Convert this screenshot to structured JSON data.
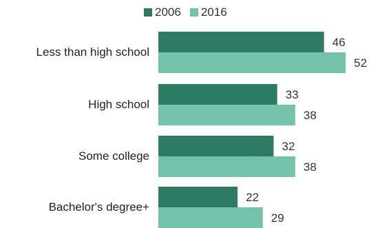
{
  "chart_data": {
    "type": "bar",
    "orientation": "horizontal",
    "title": "",
    "xlabel": "",
    "ylabel": "",
    "categories": [
      "Less than high school",
      "High school",
      "Some college",
      "Bachelor's degree+"
    ],
    "series": [
      {
        "name": "2006",
        "values": [
          46,
          33,
          32,
          22
        ],
        "color": "#2f7a63"
      },
      {
        "name": "2016",
        "values": [
          52,
          38,
          38,
          29
        ],
        "color": "#74c2aa"
      }
    ],
    "xlim": [
      0,
      52
    ],
    "grid": false,
    "legend_position": "top",
    "data_labels": true
  }
}
